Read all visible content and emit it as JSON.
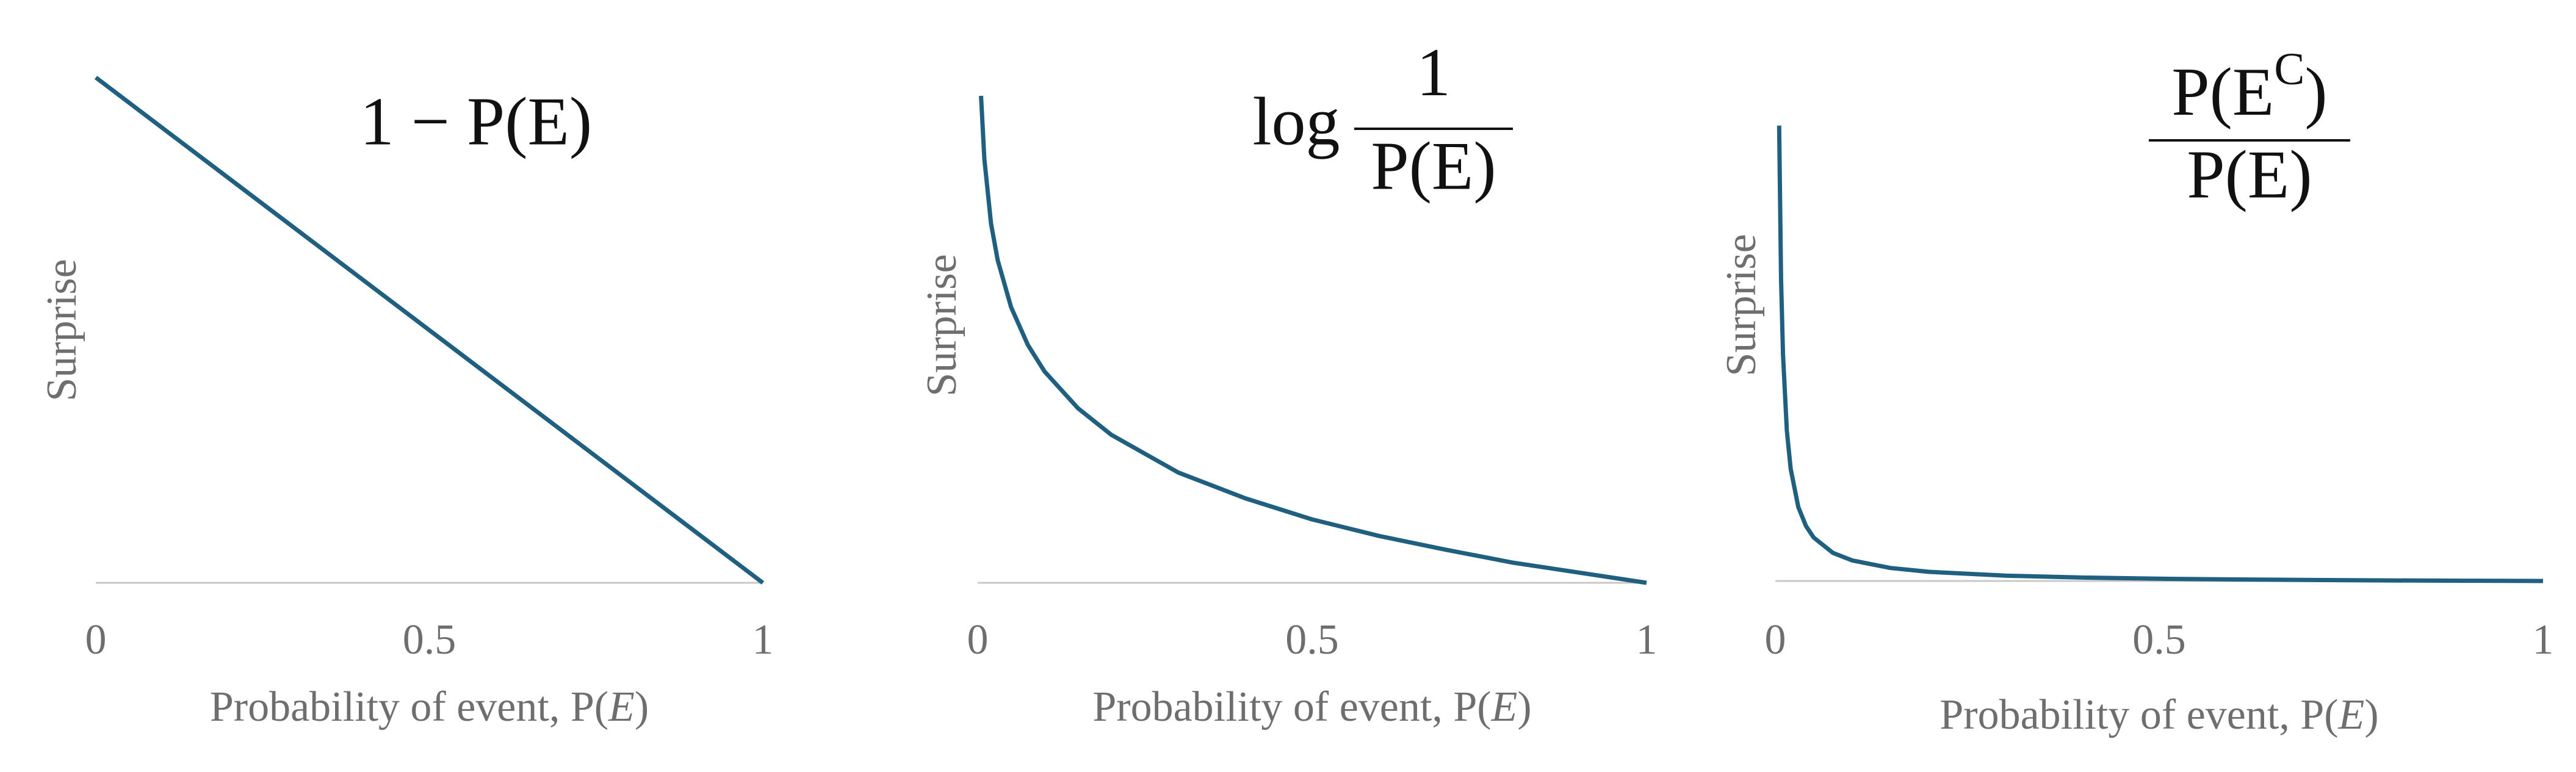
{
  "chart_data": [
    {
      "type": "line",
      "title": "1 − P(E)",
      "ylabel": "Surprise",
      "xlabel": [
        "Probability of event, P(",
        "E",
        ")"
      ],
      "x": [
        0,
        1
      ],
      "values": [
        1,
        0
      ],
      "xlim": [
        0,
        1
      ],
      "xticks": [
        0,
        0.5,
        1
      ],
      "ylim": [
        0,
        1
      ],
      "color": "#1f5f7f"
    },
    {
      "type": "line",
      "title": {
        "prefix": "log",
        "numerator": [
          "1"
        ],
        "denominator": "P(E)"
      },
      "ylabel": "Surprise",
      "xlabel": [
        "Probability of event, P(",
        "E",
        ")"
      ],
      "x": [
        0.005,
        0.01,
        0.02,
        0.03,
        0.05,
        0.075,
        0.1,
        0.15,
        0.2,
        0.3,
        0.4,
        0.5,
        0.6,
        0.7,
        0.8,
        0.9,
        1
      ],
      "values": [
        5.3,
        4.61,
        3.91,
        3.51,
        3.0,
        2.59,
        2.3,
        1.9,
        1.61,
        1.2,
        0.92,
        0.69,
        0.51,
        0.36,
        0.22,
        0.11,
        0
      ],
      "xlim": [
        0,
        1
      ],
      "xticks": [
        0,
        0.5,
        1
      ],
      "ylim": [
        0,
        5.5
      ],
      "color": "#1f5f7f"
    },
    {
      "type": "line",
      "title": {
        "numerator": [
          "P(E",
          "C",
          ")"
        ],
        "denominator": "P(E)"
      },
      "ylabel": "Surprise",
      "xlabel": [
        "Probability of event, P(",
        "E",
        ")"
      ],
      "x": [
        0.005,
        0.0075,
        0.01,
        0.015,
        0.02,
        0.03,
        0.04,
        0.05,
        0.075,
        0.1,
        0.15,
        0.2,
        0.3,
        0.4,
        0.5,
        0.6,
        0.7,
        0.8,
        0.9,
        1
      ],
      "values": [
        199,
        132.3,
        99,
        65.7,
        49,
        32.3,
        24,
        19,
        12.3,
        9,
        5.67,
        4,
        2.33,
        1.5,
        1,
        0.67,
        0.43,
        0.25,
        0.11,
        0
      ],
      "xlim": [
        0,
        1
      ],
      "xticks": [
        0,
        0.5,
        1
      ],
      "ylim": [
        0,
        220
      ],
      "color": "#1f5f7f"
    }
  ]
}
